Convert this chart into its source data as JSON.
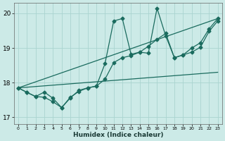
{
  "xlabel": "Humidex (Indice chaleur)",
  "bg_color": "#cceae7",
  "line_color": "#1a6b5e",
  "grid_color": "#aad4d0",
  "xlim": [
    -0.5,
    23.5
  ],
  "ylim": [
    16.8,
    20.3
  ],
  "yticks": [
    17,
    18,
    19,
    20
  ],
  "xticks": [
    0,
    1,
    2,
    3,
    4,
    5,
    6,
    7,
    8,
    9,
    10,
    11,
    12,
    13,
    14,
    15,
    16,
    17,
    18,
    19,
    20,
    21,
    22,
    23
  ],
  "line_trend1_x": [
    0,
    23
  ],
  "line_trend1_y": [
    17.85,
    18.3
  ],
  "line_trend2_x": [
    0,
    23
  ],
  "line_trend2_y": [
    17.85,
    19.85
  ],
  "line_jagged1_x": [
    0,
    1,
    2,
    3,
    4,
    5,
    6,
    7,
    8,
    9,
    10,
    11,
    12,
    13,
    14,
    15,
    16,
    17,
    18,
    19,
    20,
    21,
    22,
    23
  ],
  "line_jagged1_y": [
    17.85,
    17.72,
    17.6,
    17.73,
    17.55,
    17.28,
    17.56,
    17.78,
    17.85,
    17.9,
    18.55,
    19.78,
    19.85,
    18.82,
    18.88,
    18.85,
    20.15,
    19.35,
    18.72,
    18.8,
    19.0,
    19.15,
    19.55,
    19.85
  ],
  "line_jagged2_x": [
    0,
    1,
    2,
    3,
    4,
    5,
    6,
    7,
    8,
    9,
    10,
    11,
    12,
    13,
    14,
    15,
    16,
    17,
    18,
    19,
    20,
    21,
    22,
    23
  ],
  "line_jagged2_y": [
    17.85,
    17.72,
    17.6,
    17.58,
    17.45,
    17.28,
    17.58,
    17.75,
    17.85,
    17.9,
    18.1,
    18.58,
    18.72,
    18.78,
    18.88,
    19.05,
    19.25,
    19.42,
    18.72,
    18.8,
    18.88,
    19.02,
    19.48,
    19.78
  ]
}
